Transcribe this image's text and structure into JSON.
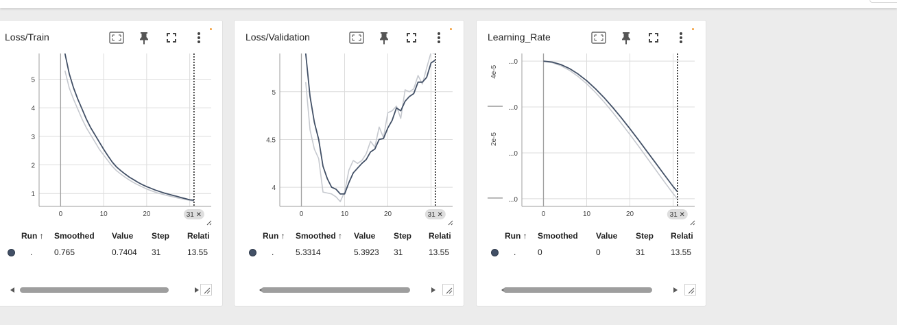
{
  "colors": {
    "series": "#425066",
    "raw": "#c6c9cf",
    "grid": "#dcdcdc",
    "axis": "#9e9e9e",
    "badge": "#f29d38"
  },
  "icons": [
    "fit-domain-icon",
    "pin-icon",
    "fullscreen-icon",
    "more-vert-icon"
  ],
  "cards": [
    {
      "title": "Loss/Train",
      "step_badge": "31 ✕",
      "table": {
        "headers": [
          "Run ↑",
          "Smoothed",
          "Value",
          "Step",
          "Relati"
        ],
        "row": [
          "",
          ".",
          "0.765",
          "0.7404",
          "31",
          "13.55"
        ]
      }
    },
    {
      "title": "Loss/Validation",
      "step_badge": "31 ✕",
      "table": {
        "headers": [
          "Run ↑",
          "Smoothed ↑",
          "Value",
          "Step",
          "Relati"
        ],
        "row": [
          "",
          ".",
          "5.3314",
          "5.3923",
          "31",
          "13.55"
        ]
      }
    },
    {
      "title": "Learning_Rate",
      "step_badge": "31 ✕",
      "table": {
        "headers": [
          "Run ↑",
          "Smoothed",
          "Value",
          "Step",
          "Relati"
        ],
        "row": [
          "",
          ".",
          "0",
          "0",
          "31",
          "13.55"
        ]
      }
    }
  ],
  "chart_data": [
    {
      "type": "line",
      "title": "Loss/Train",
      "xlim": [
        -5,
        35
      ],
      "ylim": [
        0.55,
        5.9
      ],
      "x_ticks": [
        "0",
        "10",
        "20",
        "31 ✕"
      ],
      "x_tick_values": [
        0,
        10,
        20
      ],
      "y_ticks": [
        "1",
        "2",
        "3",
        "4",
        "5"
      ],
      "y_tick_values": [
        1,
        2,
        3,
        4,
        5
      ],
      "vertical_marker_step": 31,
      "series": [
        {
          "x": [
            1,
            2,
            3,
            4,
            5,
            6,
            7,
            8,
            9,
            10,
            11,
            12,
            13,
            14,
            15,
            16,
            17,
            18,
            19,
            20,
            21,
            22,
            23,
            24,
            25,
            26,
            27,
            28,
            29,
            30,
            31
          ],
          "y": [
            5.9,
            5.2,
            4.7,
            4.3,
            3.95,
            3.6,
            3.3,
            3.05,
            2.8,
            2.55,
            2.32,
            2.1,
            1.93,
            1.8,
            1.68,
            1.57,
            1.48,
            1.39,
            1.31,
            1.24,
            1.18,
            1.12,
            1.07,
            1.02,
            0.98,
            0.94,
            0.9,
            0.86,
            0.82,
            0.78,
            0.765
          ]
        },
        {
          "x": [
            1,
            2,
            3,
            4,
            5,
            6,
            7,
            8,
            9,
            10,
            11,
            12,
            13,
            14,
            15,
            16,
            17,
            18,
            19,
            20,
            21,
            22,
            23,
            24,
            25,
            26,
            27,
            28,
            29,
            30,
            31
          ],
          "y": [
            5.3,
            4.7,
            4.3,
            3.95,
            3.6,
            3.3,
            3.05,
            2.8,
            2.55,
            2.35,
            2.15,
            1.95,
            1.8,
            1.68,
            1.57,
            1.47,
            1.38,
            1.3,
            1.23,
            1.16,
            1.1,
            1.05,
            1.0,
            0.96,
            0.92,
            0.89,
            0.85,
            0.82,
            0.79,
            0.76,
            0.7404
          ]
        }
      ]
    },
    {
      "type": "line",
      "title": "Loss/Validation",
      "xlim": [
        -5,
        35
      ],
      "ylim": [
        3.8,
        5.4
      ],
      "x_ticks": [
        "0",
        "10",
        "20",
        "31 ✕"
      ],
      "x_tick_values": [
        0,
        10,
        20
      ],
      "y_ticks": [
        "4",
        "4.5",
        "5"
      ],
      "y_tick_values": [
        4,
        4.5,
        5
      ],
      "vertical_marker_step": 31,
      "series": [
        {
          "x": [
            1,
            2,
            3,
            4,
            5,
            6,
            7,
            8,
            9,
            10,
            11,
            12,
            13,
            14,
            15,
            16,
            17,
            18,
            19,
            20,
            21,
            22,
            23,
            24,
            25,
            26,
            27,
            28,
            29,
            30,
            31
          ],
          "y": [
            5.4,
            4.95,
            4.68,
            4.5,
            4.22,
            4.09,
            4.0,
            3.98,
            3.93,
            3.93,
            4.05,
            4.15,
            4.2,
            4.25,
            4.29,
            4.37,
            4.4,
            4.5,
            4.51,
            4.62,
            4.7,
            4.83,
            4.8,
            4.9,
            4.95,
            4.98,
            5.1,
            5.1,
            5.15,
            5.3,
            5.3314
          ]
        },
        {
          "x": [
            1,
            2,
            3,
            4,
            5,
            6,
            7,
            8,
            9,
            10,
            11,
            12,
            13,
            14,
            15,
            16,
            17,
            18,
            19,
            20,
            21,
            22,
            23,
            24,
            25,
            26,
            27,
            28,
            29,
            30,
            31
          ],
          "y": [
            5.1,
            4.6,
            4.4,
            4.3,
            3.95,
            3.94,
            3.93,
            3.9,
            3.85,
            3.95,
            4.18,
            4.28,
            4.25,
            4.28,
            4.35,
            4.48,
            4.42,
            4.63,
            4.52,
            4.78,
            4.8,
            4.85,
            4.72,
            5.02,
            5.0,
            5.03,
            5.17,
            5.08,
            5.25,
            5.41,
            5.3923
          ]
        }
      ]
    },
    {
      "type": "line",
      "title": "Learning_Rate",
      "xlim": [
        -5,
        35
      ],
      "ylim": [
        0.0,
        5e-05
      ],
      "x_ticks": [
        "0",
        "10",
        "20",
        "31 ✕"
      ],
      "x_tick_values": [
        0,
        10,
        20
      ],
      "y_ticks": [
        "...0",
        "...0",
        "...0",
        "...0"
      ],
      "y_tick_values": [
        4.75e-05,
        3.25e-05,
        1.75e-05,
        2.5e-06
      ],
      "y_side_labels": [
        "4e-5",
        "2e-5"
      ],
      "y_side_values": [
        4.4e-05,
        2.2e-05
      ],
      "vertical_marker_step": 31,
      "series": [
        {
          "x": [
            0,
            2,
            4,
            6,
            8,
            10,
            12,
            14,
            16,
            18,
            20,
            22,
            24,
            26,
            28,
            30,
            31
          ],
          "y": [
            4.75e-05,
            4.72e-05,
            4.64e-05,
            4.51e-05,
            4.33e-05,
            4.11e-05,
            3.85e-05,
            3.56e-05,
            3.24e-05,
            2.9e-05,
            2.54e-05,
            2.17e-05,
            1.79e-05,
            1.41e-05,
            1.03e-05,
            6.5e-06,
            4.8e-06
          ]
        },
        {
          "x": [
            0,
            2,
            4,
            6,
            8,
            10,
            12,
            14,
            16,
            18,
            20,
            22,
            24,
            26,
            28,
            30,
            31
          ],
          "y": [
            4.75e-05,
            4.7e-05,
            4.6e-05,
            4.45e-05,
            4.25e-05,
            4.01e-05,
            3.73e-05,
            3.42e-05,
            3.08e-05,
            2.72e-05,
            2.35e-05,
            1.97e-05,
            1.58e-05,
            1.19e-05,
            8e-06,
            4.2e-06,
            2.5e-06
          ]
        }
      ]
    }
  ]
}
